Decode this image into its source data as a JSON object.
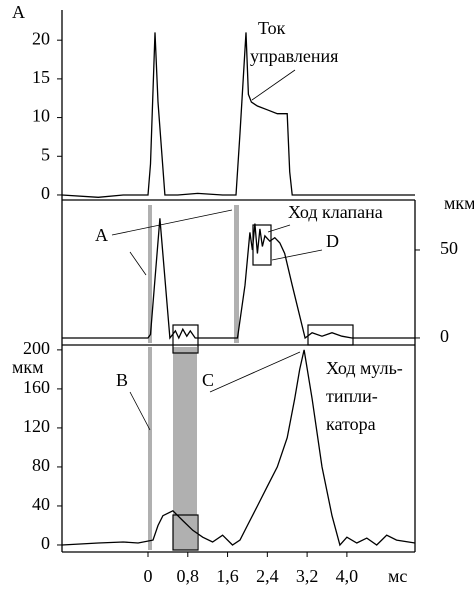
{
  "chart_data": [
    {
      "type": "line",
      "ylabel": "A",
      "xlim": [
        -1.73,
        5.37
      ],
      "ylim": [
        -0.65,
        23.9
      ],
      "yticks": [
        0,
        5,
        10,
        15,
        20
      ],
      "yaxis_side": "left",
      "series": [
        {
          "color": "#000000",
          "x": [
            -1.73,
            -1.0,
            -0.5,
            0.0,
            0.05,
            0.14,
            0.2,
            0.34,
            0.6,
            1.0,
            1.5,
            1.77,
            1.85,
            1.97,
            2.02,
            2.08,
            2.2,
            2.4,
            2.6,
            2.8,
            2.85,
            2.9,
            3.5,
            4.5,
            5.37
          ],
          "values": [
            0,
            -0.3,
            0,
            0,
            4,
            21,
            12,
            0,
            0,
            0.2,
            0,
            0,
            8,
            21,
            13,
            12,
            11.5,
            11,
            10.5,
            10.5,
            3,
            0,
            0,
            0,
            0
          ]
        }
      ]
    },
    {
      "type": "line",
      "ylabel": "мкм",
      "xlim": [
        -1.73,
        5.37
      ],
      "ylim": [
        -4,
        78.4
      ],
      "yticks": [
        0,
        50
      ],
      "yaxis_side": "right",
      "series": [
        {
          "color": "#000000",
          "x": [
            -1.73,
            -0.5,
            0.0,
            0.05,
            0.24,
            0.44,
            0.55,
            0.62,
            0.7,
            0.78,
            0.85,
            0.95,
            1.1,
            1.5,
            1.8,
            1.95,
            2.05,
            2.1,
            2.15,
            2.2,
            2.25,
            2.3,
            2.35,
            2.45,
            2.55,
            2.65,
            2.75,
            2.9,
            3.16,
            3.3,
            3.5,
            3.7,
            3.9,
            4.1,
            5.37
          ],
          "values": [
            0,
            0,
            0,
            2,
            68,
            0,
            4,
            0,
            5,
            1,
            4,
            0,
            0,
            0,
            0,
            30,
            60,
            50,
            65,
            48,
            62,
            52,
            58,
            55,
            57,
            54,
            48,
            30,
            0,
            3,
            1,
            3,
            1,
            0,
            0
          ]
        }
      ]
    },
    {
      "type": "line",
      "ylabel": "мкм",
      "xlabel": "мс",
      "xlim": [
        -1.73,
        5.37
      ],
      "ylim": [
        -7.2,
        205
      ],
      "yticks": [
        0,
        40,
        80,
        120,
        160,
        200
      ],
      "yaxis_side": "left",
      "xticks": [
        0,
        {
          "value": 0.8,
          "label": "0,8"
        },
        {
          "value": 1.6,
          "label": "1,6"
        },
        {
          "value": 2.4,
          "label": "2,4"
        },
        {
          "value": 3.2,
          "label": "3,2"
        },
        {
          "value": 4.0,
          "label": "4,0"
        }
      ],
      "series": [
        {
          "color": "#000000",
          "x": [
            -1.73,
            -1.0,
            -0.5,
            -0.2,
            0.1,
            0.2,
            0.3,
            0.5,
            0.6,
            0.7,
            0.9,
            1.1,
            1.3,
            1.5,
            1.7,
            1.85,
            2.0,
            2.2,
            2.4,
            2.6,
            2.8,
            2.95,
            3.05,
            3.14,
            3.3,
            3.5,
            3.7,
            3.86,
            4.0,
            4.2,
            4.4,
            4.6,
            4.8,
            5.0,
            5.37
          ],
          "values": [
            0,
            2,
            3,
            2,
            5,
            20,
            30,
            35,
            30,
            25,
            15,
            8,
            3,
            10,
            0,
            5,
            20,
            40,
            60,
            80,
            110,
            150,
            180,
            200,
            150,
            80,
            30,
            0,
            8,
            2,
            7,
            0,
            10,
            5,
            2
          ]
        }
      ]
    }
  ],
  "annotations": [
    "Ток",
    "управления",
    "A",
    "Ход клапана",
    "D",
    "B",
    "C",
    "Ход муль-",
    "типли-",
    "катора"
  ]
}
